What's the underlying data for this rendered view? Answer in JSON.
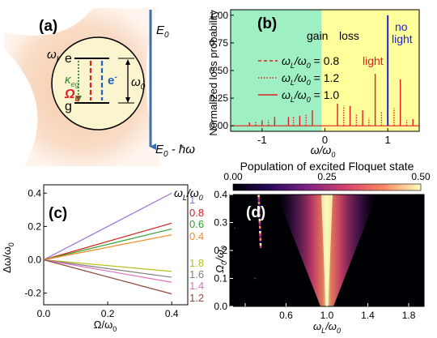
{
  "panel_a": {
    "panel_label": "(a)",
    "energy_axis_top": "E",
    "energy_axis_top_sub": "0",
    "energy_axis_bottom": "E",
    "energy_axis_bottom_sub": "0",
    "energy_axis_bottom_suffix": " - ħω",
    "laser_label": "ω",
    "laser_label_sub": "L",
    "excited_state": "e",
    "ground_state": "g",
    "kappa": "κ",
    "kappa_sub": "eg",
    "omega": "Ω",
    "omega_sub": "0",
    "electron": "e",
    "electron_sup": "-",
    "transition": "ω",
    "transition_sub": "0",
    "colors": {
      "kappa": "#2e8b2e",
      "omega": "#e02020",
      "electron": "#2060c0",
      "beam": "#f6c8a8"
    }
  },
  "chart_data": [
    {
      "panel": "(b)",
      "type": "line",
      "xlabel": "ω/ω",
      "xlabel_sub": "0",
      "ylabel": "Normalized loss probability",
      "xlim": [
        -1.5,
        1.5
      ],
      "ylim": [
        -0.05,
        1.05
      ],
      "xticks": [
        "-1",
        "0",
        "1"
      ],
      "yticks": [
        "0.00",
        "0.25",
        "0.50",
        "0.75",
        "1.00"
      ],
      "regions": [
        {
          "name": "gain",
          "x": [
            -1.5,
            -0.05
          ],
          "color": "#9ef0c4"
        },
        {
          "name": "loss",
          "x": [
            -0.05,
            1.5
          ],
          "color": "#ffff9c"
        }
      ],
      "annotations": [
        {
          "text": "gain",
          "x": -0.55,
          "y": 0.72
        },
        {
          "text": "loss",
          "x": 0.22,
          "y": 0.72
        },
        {
          "text": "light",
          "x": 0.78,
          "y": 0.5,
          "color": "#e02020"
        },
        {
          "text": "no",
          "x": 1.1,
          "y": 0.93,
          "color": "#2020d0"
        },
        {
          "text": "light",
          "x": 1.1,
          "y": 0.8,
          "color": "#2020d0"
        }
      ],
      "legend": [
        {
          "label_value": " = 0.8",
          "style": "dashed"
        },
        {
          "label_value": " = 1.2",
          "style": "dotted"
        },
        {
          "label_value": " = 1.0",
          "style": "solid"
        }
      ],
      "legend_prefix": "ω",
      "legend_prefix_sub": "L",
      "legend_mid": "/ω",
      "legend_mid_sub": "0",
      "series": [
        {
          "color": "#2020d0",
          "peaks": [
            [
              1.0,
              1.0
            ]
          ]
        },
        {
          "color": "#e02020",
          "peaks": [
            [
              -1.2,
              0.03
            ],
            [
              -1.0,
              0.05
            ],
            [
              -0.8,
              0.08
            ],
            [
              -0.58,
              0.08
            ],
            [
              -0.4,
              0.09
            ],
            [
              -0.2,
              0.14
            ],
            [
              0.2,
              0.2
            ],
            [
              0.4,
              0.18
            ],
            [
              0.6,
              0.14
            ],
            [
              0.8,
              0.47
            ],
            [
              1.2,
              0.42
            ],
            [
              1.4,
              0.06
            ]
          ]
        },
        {
          "color": "#e02020",
          "peaks": [
            [
              -1.1,
              0.04
            ],
            [
              -0.9,
              0.05
            ],
            [
              -0.5,
              0.08
            ],
            [
              -0.3,
              0.1
            ],
            [
              0.3,
              0.18
            ],
            [
              0.5,
              0.1
            ],
            [
              0.7,
              0.07
            ],
            [
              0.9,
              0.13
            ],
            [
              1.1,
              0.16
            ],
            [
              1.3,
              0.05
            ]
          ]
        }
      ]
    },
    {
      "panel": "(c)",
      "type": "line",
      "xlabel": "Ω/ω",
      "xlabel_sub": "0",
      "ylabel": "Δω/ω",
      "ylabel_sub": "0",
      "xlim": [
        0,
        0.45
      ],
      "ylim": [
        -0.27,
        0.45
      ],
      "xticks": [
        "0.0",
        "0.2",
        "0.4"
      ],
      "yticks": [
        "-0.2",
        "0.0",
        "0.2",
        "0.4"
      ],
      "legend_title": "ω",
      "legend_title_sub": "L",
      "legend_title_mid": "/ω",
      "legend_title_sub2": "0",
      "series": [
        {
          "name": "1",
          "x": [
            0,
            0.4
          ],
          "y": [
            0,
            0.4
          ],
          "color": "#9b6fd6"
        },
        {
          "name": "0.8",
          "x": [
            0,
            0.4
          ],
          "y": [
            0,
            0.22
          ],
          "color": "#d02020"
        },
        {
          "name": "0.6",
          "x": [
            0,
            0.4
          ],
          "y": [
            0,
            0.185
          ],
          "color": "#30a030"
        },
        {
          "name": "0.4",
          "x": [
            0,
            0.4
          ],
          "y": [
            0,
            0.15
          ],
          "color": "#f08a20"
        },
        {
          "name": "1.8",
          "x": [
            0,
            0.4
          ],
          "y": [
            0,
            -0.07
          ],
          "color": "#b8c020"
        },
        {
          "name": "1.6",
          "x": [
            0,
            0.4
          ],
          "y": [
            0,
            -0.105
          ],
          "color": "#808080"
        },
        {
          "name": "1.4",
          "x": [
            0,
            0.4
          ],
          "y": [
            0,
            -0.135
          ],
          "color": "#e070c0"
        },
        {
          "name": "1.2",
          "x": [
            0,
            0.4
          ],
          "y": [
            0,
            -0.205
          ],
          "color": "#8b4a3a"
        }
      ]
    },
    {
      "panel": "(d)",
      "type": "heatmap",
      "title": "Population of excited Floquet state",
      "colorbar_ticks": [
        "0.00",
        "0.25",
        "0.50"
      ],
      "xlabel": "ω",
      "xlabel_sub": "L",
      "xlabel_mid": "/ω",
      "xlabel_sub2": "0",
      "ylabel": "Ω",
      "ylabel_sub": "0",
      "ylabel_mid": "/ω",
      "ylabel_sub2": "0",
      "xlim": [
        0.05,
        1.95
      ],
      "ylim": [
        0,
        0.4
      ],
      "xticks": [
        "0.6",
        "1.0",
        "1.4",
        "1.8"
      ],
      "yticks": [
        "0.0",
        "0.1",
        "0.2",
        "0.3",
        "0.4"
      ],
      "resonance_center": 1.0,
      "secondary_resonance": 0.33
    }
  ]
}
